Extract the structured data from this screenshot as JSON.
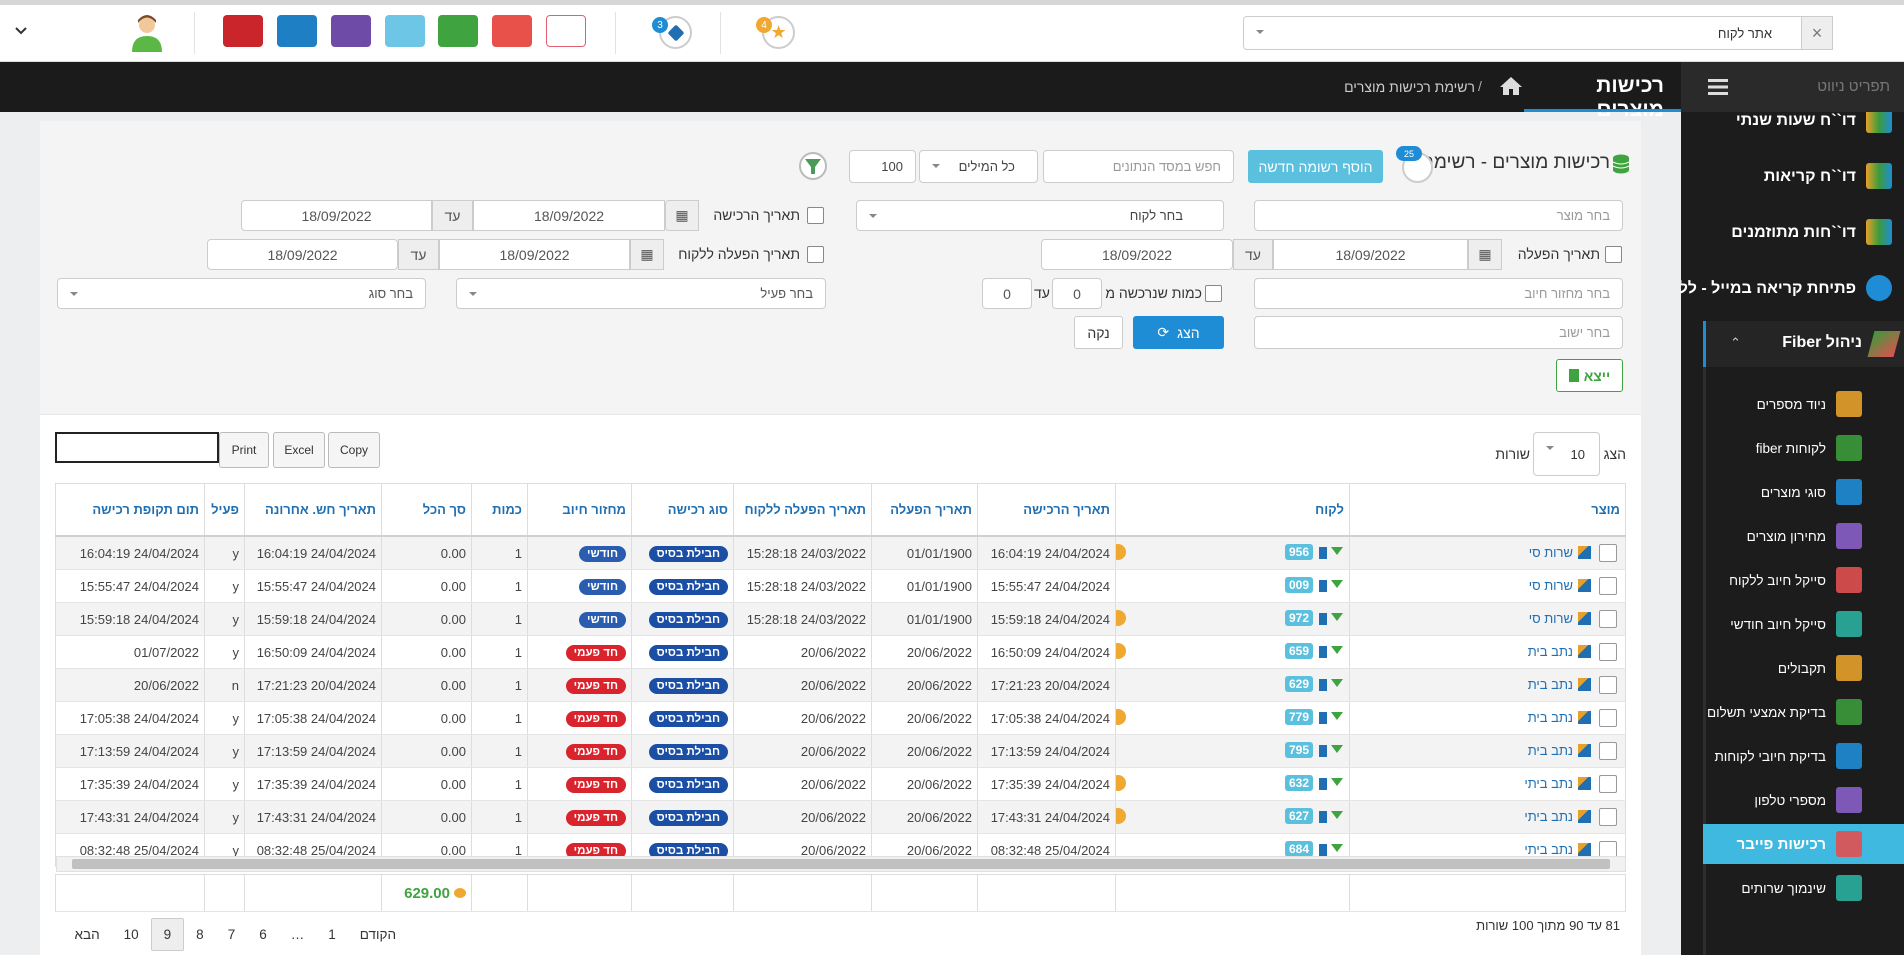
{
  "topbar": {
    "site_select": "אתר לקוח",
    "notification_badges": [
      "4",
      "3"
    ]
  },
  "header": {
    "nav_title": "תפריט ניווט",
    "page_title": "רכישות מוצרים",
    "breadcrumb": "רשימת רכישות מוצרים"
  },
  "sidebar": {
    "items": [
      "דו``ח שעות שנתי",
      "דו``ח קריאות",
      "דו``חות מתוזמנים",
      "פתיחת קריאה במייל - לל"
    ],
    "section": "ניהול Fiber",
    "sub_items": [
      "ניוד מספרים",
      "לקוחות fiber",
      "סוגי מוצרים",
      "מחירון מוצרים",
      "סייקל חיוב ללקוח",
      "סייקל חיוב חודשי",
      "תקבולים",
      "בדיקת אמצעי תשלום",
      "בדיקת חיובי לקוחות",
      "מספרי טלפון",
      "רכישות פייבר",
      "שינמוך שרותים"
    ],
    "active_sub_item": 10
  },
  "panel": {
    "title": "רכישות מוצרים - רשימה",
    "title_badge": "25",
    "add_button": "הוסף רשומה חדשה",
    "search_placeholder": "חפש במסד הנתונים",
    "match_select": "כל המילים",
    "limit": "100",
    "filters": {
      "product": "בחר מוצר",
      "customer": "בחר לקוח",
      "purchase_date": {
        "label": "תאריך הרכישה",
        "from": "18/09/2022",
        "until": "עד",
        "to": "18/09/2022"
      },
      "activation_date": {
        "label": "תאריך הפעלה",
        "from": "18/09/2022",
        "until": "עד",
        "to": "18/09/2022"
      },
      "customer_activation_date": {
        "label": "תאריך הפעלה ללקוח",
        "from": "18/09/2022",
        "until": "עד",
        "to": "18/09/2022"
      },
      "billing_cycle": "בחר מחזור חיוב",
      "quantity": {
        "label": "כמות שנרכשה מ",
        "from": "0",
        "until": "עד",
        "to": "0"
      },
      "active": "בחר פעיל",
      "type": "בחר סוג",
      "settlement": "בחר ישוב",
      "show_button": "הצג",
      "clear_button": "נקה",
      "export_button": "ייצא"
    }
  },
  "table": {
    "length_before": "הצג",
    "length": "10",
    "length_after": "שורות",
    "buttons": [
      "Copy",
      "Excel",
      "Print"
    ],
    "columns": [
      "מוצר",
      "לקוח",
      "תאריך הרכישה",
      "תאריך הפעלה",
      "תאריך הפעלה ללקוח",
      "סוג רכישה",
      "מחזור חיוב",
      "כמות",
      "סך הכל",
      "תאריך חש. אחרונה",
      "פעיל",
      "תום תקופת רכישה"
    ],
    "rows": [
      [
        "שרות סי",
        "956",
        "24/04/2024 16:04:19",
        "01/01/1900",
        "24/03/2022 15:28:18",
        "חבילת בסיס",
        "חודשי",
        "1",
        "0.00",
        "24/04/2024 16:04:19",
        "y",
        "24/04/2024 16:04:19"
      ],
      [
        "שרות סי",
        "009",
        "24/04/2024 15:55:47",
        "01/01/1900",
        "24/03/2022 15:28:18",
        "חבילת בסיס",
        "חודשי",
        "1",
        "0.00",
        "24/04/2024 15:55:47",
        "y",
        "24/04/2024 15:55:47"
      ],
      [
        "שרות סי",
        "972",
        "24/04/2024 15:59:18",
        "01/01/1900",
        "24/03/2022 15:28:18",
        "חבילת בסיס",
        "חודשי",
        "1",
        "0.00",
        "24/04/2024 15:59:18",
        "y",
        "24/04/2024 15:59:18"
      ],
      [
        "נתב בית",
        "659",
        "24/04/2024 16:50:09",
        "20/06/2022",
        "20/06/2022",
        "חבילת בסיס",
        "חד פעמי",
        "1",
        "0.00",
        "24/04/2024 16:50:09",
        "y",
        "01/07/2022"
      ],
      [
        "נתב בית",
        "629",
        "20/04/2024 17:21:23",
        "20/06/2022",
        "20/06/2022",
        "חבילת בסיס",
        "חד פעמי",
        "1",
        "0.00",
        "20/04/2024 17:21:23",
        "n",
        "20/06/2022"
      ],
      [
        "נתב בית",
        "779",
        "24/04/2024 17:05:38",
        "20/06/2022",
        "20/06/2022",
        "חבילת בסיס",
        "חד פעמי",
        "1",
        "0.00",
        "24/04/2024 17:05:38",
        "y",
        "24/04/2024 17:05:38"
      ],
      [
        "נתב בית",
        "795",
        "24/04/2024 17:13:59",
        "20/06/2022",
        "20/06/2022",
        "חבילת בסיס",
        "חד פעמי",
        "1",
        "0.00",
        "24/04/2024 17:13:59",
        "y",
        "24/04/2024 17:13:59"
      ],
      [
        "נתב ביתי",
        "632",
        "24/04/2024 17:35:39",
        "20/06/2022",
        "20/06/2022",
        "חבילת בסיס",
        "חד פעמי",
        "1",
        "0.00",
        "24/04/2024 17:35:39",
        "y",
        "24/04/2024 17:35:39"
      ],
      [
        "נתב ביתי",
        "627",
        "24/04/2024 17:43:31",
        "20/06/2022",
        "20/06/2022",
        "חבילת בסיס",
        "חד פעמי",
        "1",
        "0.00",
        "24/04/2024 17:43:31",
        "y",
        "24/04/2024 17:43:31"
      ],
      [
        "נתב ביתי",
        "684",
        "25/04/2024 08:32:48",
        "20/06/2022",
        "20/06/2022",
        "חבילת בסיס",
        "חד פעמי",
        "1",
        "0.00",
        "25/04/2024 08:32:48",
        "y",
        "25/04/2024 08:32:48"
      ]
    ],
    "total": "629.00",
    "info": "81 עד 90 מתוך 100 שורות",
    "pagination": [
      "הקודם",
      "1",
      "…",
      "6",
      "7",
      "8",
      "9",
      "10",
      "הבא"
    ],
    "active_page": 6
  }
}
